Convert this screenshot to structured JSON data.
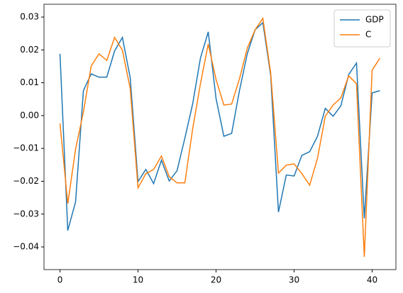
{
  "chart_data": {
    "type": "line",
    "x": [
      0,
      1,
      2,
      3,
      4,
      5,
      6,
      7,
      8,
      9,
      10,
      11,
      12,
      13,
      14,
      15,
      16,
      17,
      18,
      19,
      20,
      21,
      22,
      23,
      24,
      25,
      26,
      27,
      28,
      29,
      30,
      31,
      32,
      33,
      34,
      35,
      36,
      37,
      38,
      39,
      40,
      41
    ],
    "series": [
      {
        "name": "GDP",
        "color": "#1f77b4",
        "values": [
          0.0188,
          -0.035,
          -0.0262,
          0.0076,
          0.0127,
          0.0117,
          0.0117,
          0.0197,
          0.0238,
          0.0115,
          -0.0201,
          -0.0164,
          -0.0207,
          -0.0136,
          -0.0199,
          -0.0168,
          -0.0069,
          0.0035,
          0.0175,
          0.0255,
          0.0052,
          -0.0063,
          -0.0054,
          0.0076,
          0.0188,
          0.0261,
          0.0283,
          0.0123,
          -0.0294,
          -0.0181,
          -0.0184,
          -0.0121,
          -0.011,
          -0.0063,
          0.0022,
          -0.0002,
          0.003,
          0.0125,
          0.016,
          -0.0313,
          0.0069,
          0.0076
        ]
      },
      {
        "name": "C",
        "color": "#ff7f0e",
        "values": [
          -0.0024,
          -0.0268,
          -0.0102,
          0.0011,
          0.0151,
          0.0188,
          0.0168,
          0.0238,
          0.0199,
          0.0082,
          -0.022,
          -0.0177,
          -0.0164,
          -0.0123,
          -0.0186,
          -0.0205,
          -0.0205,
          -0.0041,
          0.0097,
          0.0218,
          0.011,
          0.0032,
          0.0035,
          0.0112,
          0.0205,
          0.0261,
          0.0296,
          0.013,
          -0.0175,
          -0.0151,
          -0.0147,
          -0.0177,
          -0.0212,
          -0.013,
          -0.0002,
          0.0032,
          0.0054,
          0.0121,
          0.0097,
          -0.043,
          0.0138,
          0.0175
        ]
      }
    ],
    "xlim": [
      -2.05,
      43.05
    ],
    "xticks": [
      0,
      10,
      20,
      30,
      40
    ],
    "ylim": [
      -0.0469,
      0.0339
    ],
    "yticks": [
      {
        "value": -0.04,
        "label": "−0.04"
      },
      {
        "value": -0.03,
        "label": "−0.03"
      },
      {
        "value": -0.02,
        "label": "−0.02"
      },
      {
        "value": -0.01,
        "label": "−0.01"
      },
      {
        "value": 0,
        "label": "0.00"
      },
      {
        "value": 0.01,
        "label": "0.01"
      },
      {
        "value": 0.02,
        "label": "0.02"
      },
      {
        "value": 0.03,
        "label": "0.03"
      }
    ],
    "legend": "upper right",
    "grid": false
  }
}
